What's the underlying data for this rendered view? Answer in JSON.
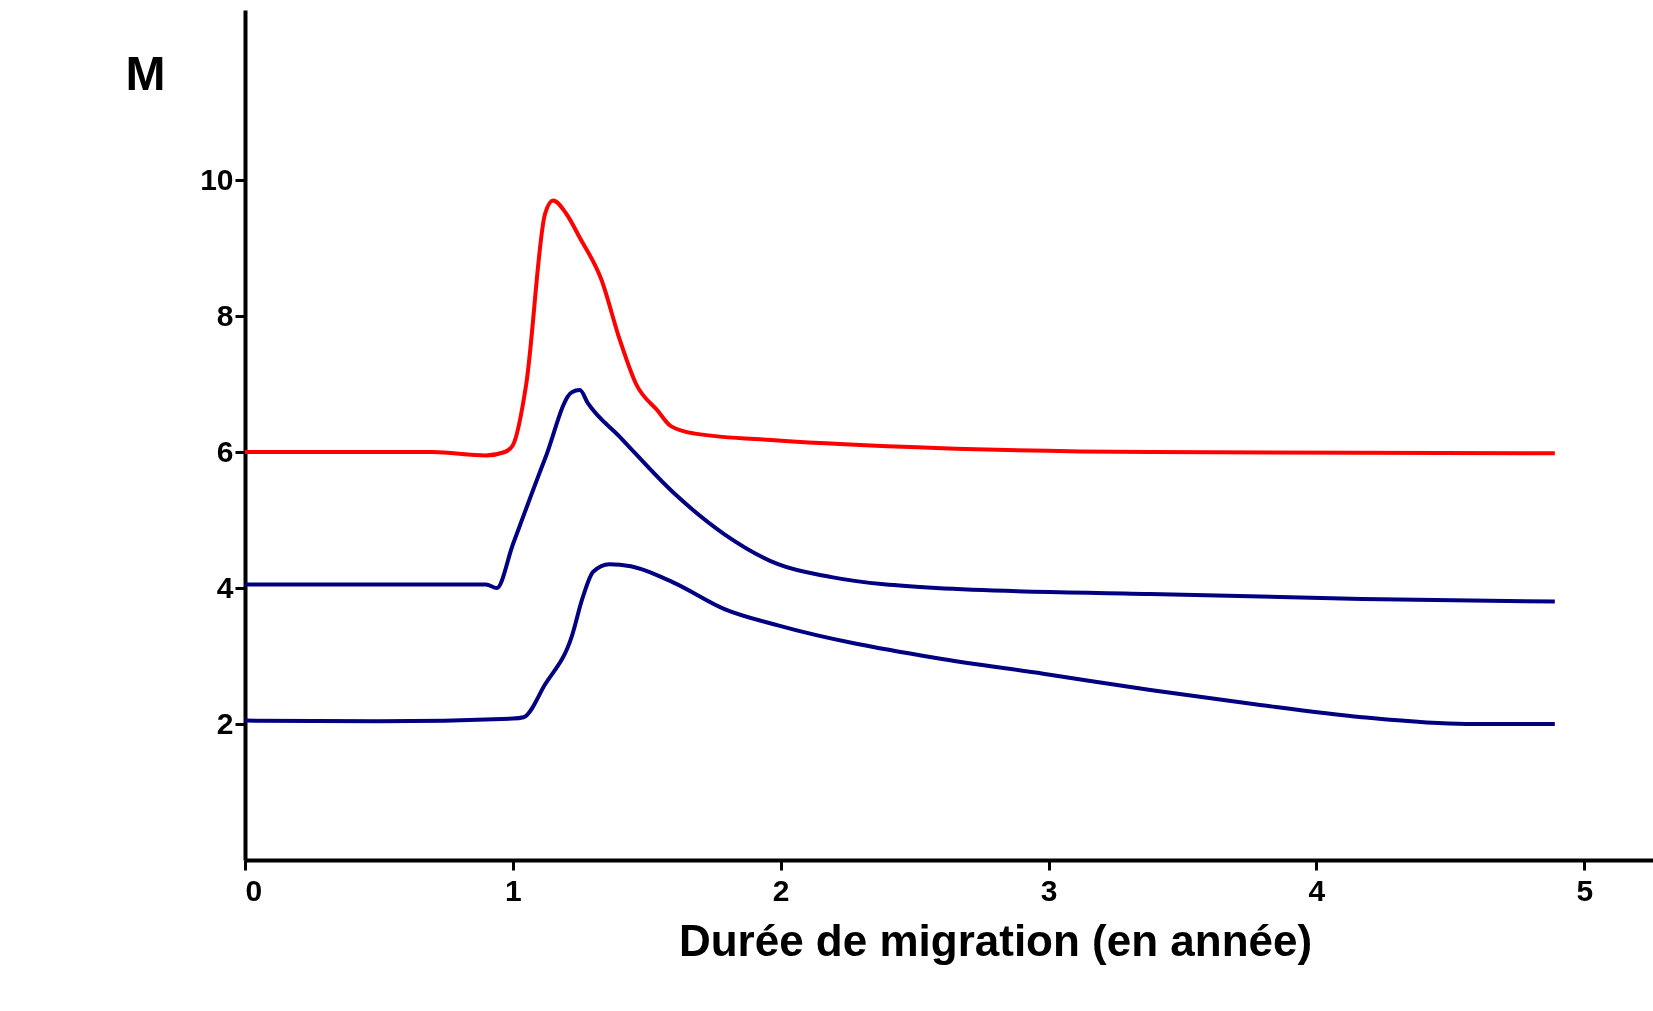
{
  "chart_data": {
    "type": "line",
    "xlabel": "Durée de migration (en année)",
    "ylabel": "M",
    "xlim": [
      0,
      5.6
    ],
    "ylim": [
      0,
      12.5
    ],
    "xticks": [
      0,
      1,
      2,
      3,
      4,
      5
    ],
    "yticks": [
      2,
      4,
      6,
      8,
      10
    ],
    "grid": false,
    "legend": false,
    "marker": "none",
    "line_style": "solid",
    "series": [
      {
        "color": "#ff0000",
        "x": [
          0,
          0.7,
          0.9,
          0.97,
          1.0,
          1.05,
          1.12,
          1.15,
          1.2,
          1.25,
          1.33,
          1.4,
          1.46,
          1.54,
          1.59,
          1.68,
          1.99,
          2.58,
          3.38,
          4.89
        ],
        "values": [
          6,
          6,
          5.95,
          6.0,
          6.1,
          7.0,
          9.5,
          9.7,
          9.5,
          9.15,
          8.54,
          7.64,
          7.0,
          6.61,
          6.38,
          6.27,
          6.17,
          6.06,
          6.0,
          5.98
        ]
      },
      {
        "color": "#000080",
        "x": [
          0,
          0.9,
          0.94,
          1.0,
          1.12,
          1.22,
          1.25,
          1.28,
          1.4,
          1.6,
          1.79,
          1.99,
          2.19,
          2.58,
          3.38,
          4.17,
          4.89
        ],
        "values": [
          4.05,
          4.05,
          4.0,
          4.64,
          5.9,
          6.88,
          6.91,
          6.72,
          6.22,
          5.4,
          4.79,
          4.35,
          4.16,
          4.0,
          3.91,
          3.84,
          3.8
        ]
      },
      {
        "color": "#000080",
        "x": [
          0,
          0.5,
          1.0,
          1.04,
          1.12,
          1.22,
          1.26,
          1.3,
          1.36,
          1.44,
          1.6,
          1.79,
          1.99,
          2.58,
          2.98,
          3.38,
          3.77,
          4.17,
          4.56,
          4.89
        ],
        "values": [
          2.05,
          2.04,
          2.08,
          2.1,
          2.58,
          3.29,
          3.85,
          4.24,
          4.35,
          4.32,
          4.08,
          3.69,
          3.45,
          2.97,
          2.74,
          2.5,
          2.29,
          2.1,
          2.0,
          2.0
        ]
      }
    ]
  }
}
